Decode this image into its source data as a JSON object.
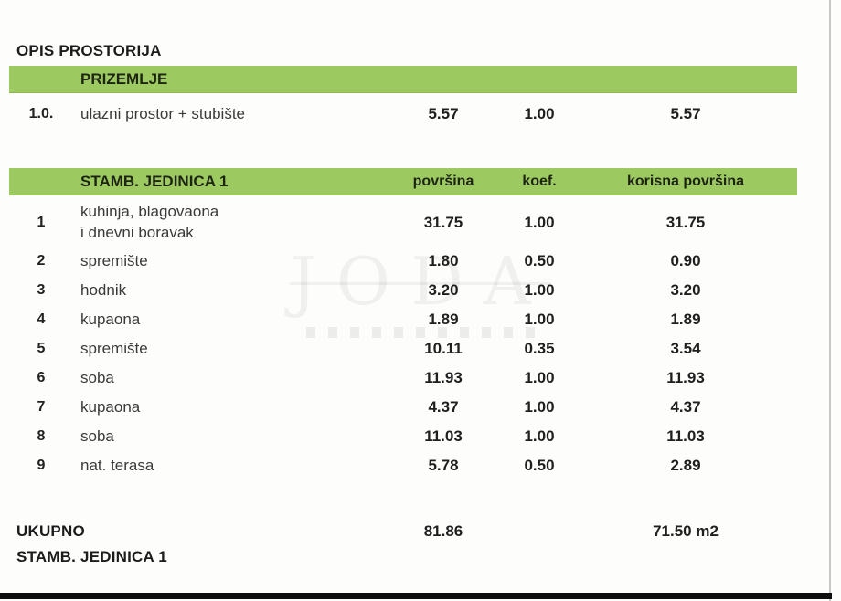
{
  "title": "OPIS PROSTORIJA",
  "colors": {
    "accent_green": "#9cca60",
    "text_dark": "#1f1f1f"
  },
  "watermark": {
    "text": "JODA"
  },
  "prizemlje": {
    "header": "PRIZEMLJE",
    "row": {
      "num": "1.0.",
      "label": "ulazni prostor + stubište",
      "povrsina": "5.57",
      "koef": "1.00",
      "korisna": "5.57"
    }
  },
  "unit": {
    "header": "STAMB. JEDINICA 1",
    "col_povrsina": "površina",
    "col_koef": "koef.",
    "col_korisna": "korisna površina",
    "rows": [
      {
        "num": "1",
        "label1": "kuhinja, blagovaona",
        "label2": "i dnevni boravak",
        "povrsina": "31.75",
        "koef": "1.00",
        "korisna": "31.75"
      },
      {
        "num": "2",
        "label": "spremište",
        "povrsina": "1.80",
        "koef": "0.50",
        "korisna": "0.90"
      },
      {
        "num": "3",
        "label": "hodnik",
        "povrsina": "3.20",
        "koef": "1.00",
        "korisna": "3.20"
      },
      {
        "num": "4",
        "label": "kupaona",
        "povrsina": "1.89",
        "koef": "1.00",
        "korisna": "1.89"
      },
      {
        "num": "5",
        "label": "spremište",
        "povrsina": "10.11",
        "koef": "0.35",
        "korisna": "3.54"
      },
      {
        "num": "6",
        "label": "soba",
        "povrsina": "11.93",
        "koef": "1.00",
        "korisna": "11.93"
      },
      {
        "num": "7",
        "label": "kupaona",
        "povrsina": "4.37",
        "koef": "1.00",
        "korisna": "4.37"
      },
      {
        "num": "8",
        "label": "soba",
        "povrsina": "11.03",
        "koef": "1.00",
        "korisna": "11.03"
      },
      {
        "num": "9",
        "label": "nat. terasa",
        "povrsina": "5.78",
        "koef": "0.50",
        "korisna": "2.89"
      }
    ]
  },
  "totals": {
    "label_line1": "UKUPNO",
    "label_line2": "STAMB. JEDINICA 1",
    "povrsina": "81.86",
    "korisna": "71.50 m2"
  }
}
